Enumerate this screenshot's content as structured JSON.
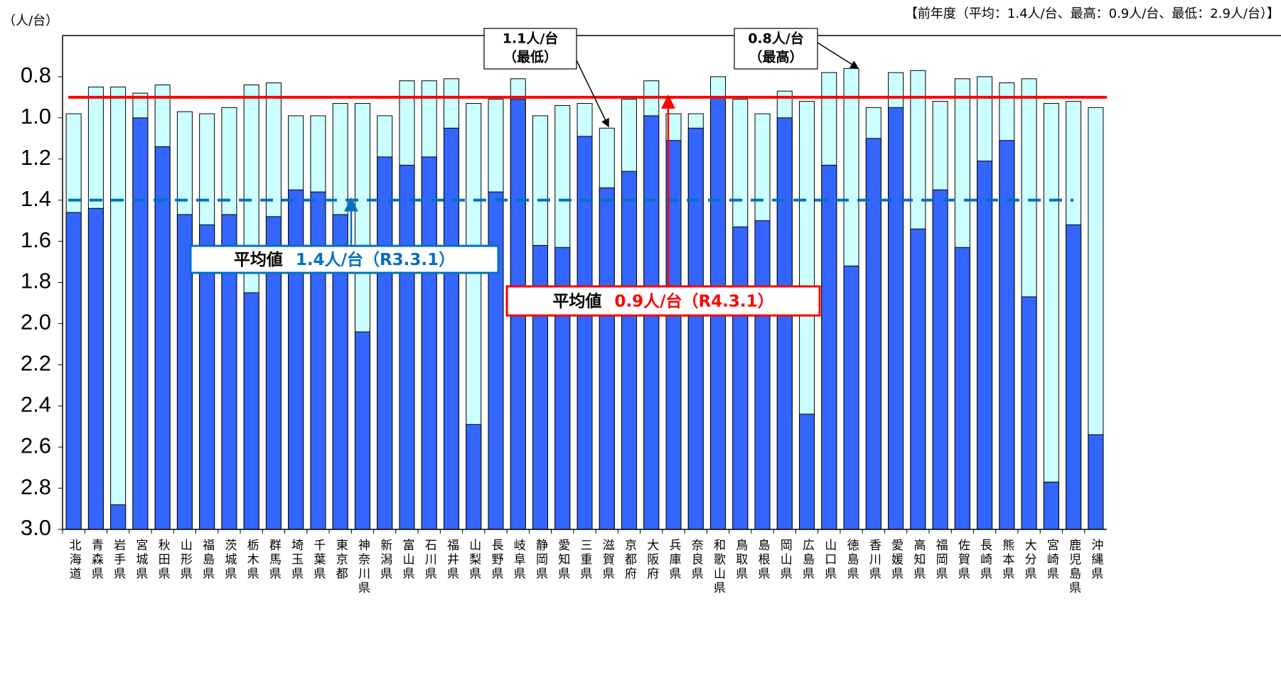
{
  "chart_data": {
    "type": "bar",
    "unit_label": "（人/台）",
    "header": "【前年度（平均：1.4人/台、最高：0.9人/台、最低：2.9人/台）】",
    "categories": [
      "北海道",
      "青森県",
      "岩手県",
      "宮城県",
      "秋田県",
      "山形県",
      "福島県",
      "茨城県",
      "栃木県",
      "群馬県",
      "埼玉県",
      "千葉県",
      "東京都",
      "神奈川県",
      "新潟県",
      "富山県",
      "石川県",
      "福井県",
      "山梨県",
      "長野県",
      "岐阜県",
      "静岡県",
      "愛知県",
      "三重県",
      "滋賀県",
      "京都府",
      "大阪府",
      "兵庫県",
      "奈良県",
      "和歌山県",
      "鳥取県",
      "島根県",
      "岡山県",
      "広島県",
      "山口県",
      "徳島県",
      "香川県",
      "愛媛県",
      "高知県",
      "福岡県",
      "佐賀県",
      "長崎県",
      "熊本県",
      "大分県",
      "宮崎県",
      "鹿児島県",
      "沖縄県"
    ],
    "series": [
      {
        "color": "#ccffff",
        "values": [
          0.98,
          0.85,
          0.85,
          0.88,
          0.84,
          0.97,
          0.98,
          0.95,
          0.84,
          0.83,
          0.99,
          0.99,
          0.93,
          0.93,
          0.99,
          0.82,
          0.82,
          0.81,
          0.93,
          0.91,
          0.81,
          0.99,
          0.94,
          0.93,
          1.05,
          0.91,
          0.82,
          0.98,
          0.98,
          0.8,
          0.91,
          0.98,
          0.87,
          0.92,
          0.78,
          0.76,
          0.95,
          0.78,
          0.77,
          0.92,
          0.81,
          0.8,
          0.83,
          0.81,
          0.93,
          0.92,
          0.95
        ]
      },
      {
        "color": "#3366ff",
        "values": [
          1.46,
          1.44,
          2.88,
          1.0,
          1.14,
          1.47,
          1.52,
          1.47,
          1.85,
          1.48,
          1.35,
          1.36,
          1.47,
          2.04,
          1.19,
          1.23,
          1.19,
          1.05,
          2.49,
          1.36,
          0.91,
          1.62,
          1.63,
          1.09,
          1.34,
          1.26,
          0.99,
          1.11,
          1.05,
          0.9,
          1.53,
          1.5,
          1.0,
          2.44,
          1.23,
          1.72,
          1.1,
          0.95,
          1.54,
          1.35,
          1.63,
          1.21,
          1.11,
          1.87,
          2.77,
          1.52,
          2.54
        ]
      }
    ],
    "ylim": [
      3.0,
      0.6
    ],
    "yticks": [
      0.8,
      {
        "value": 1,
        "label": "1.0"
      },
      1.2,
      1.4,
      1.6,
      1.8,
      {
        "value": 2,
        "label": "2.0"
      },
      2.2,
      2.4,
      2.6,
      2.8,
      {
        "value": 3,
        "label": "3.0"
      }
    ],
    "reference_lines": [
      {
        "value": 1.4,
        "prefix": "平均値",
        "label": "1.4人/台（R3.3.1）",
        "color": "#0070c0",
        "dashed": true
      },
      {
        "value": 0.9,
        "prefix": "平均値",
        "label": "0.9人/台（R4.3.1）",
        "color": "#ff0000",
        "dashed": false
      }
    ],
    "annotations": [
      {
        "lines": [
          "1.1人/台",
          "（最低）"
        ]
      },
      {
        "lines": [
          "0.8人/台",
          "（最高）"
        ]
      }
    ]
  }
}
